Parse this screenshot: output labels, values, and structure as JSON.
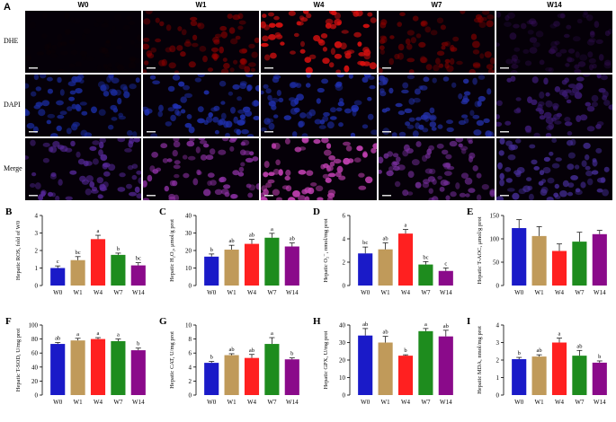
{
  "panelA": {
    "letter": "A",
    "columns": [
      "W0",
      "W1",
      "W4",
      "W7",
      "W14"
    ],
    "rows": [
      "DHE",
      "DAPI",
      "Merge"
    ]
  },
  "colors": {
    "W0": "#1a1ac8",
    "W1": "#c09a5a",
    "W4": "#ff2020",
    "W7": "#1e8c1e",
    "W14": "#8a0a8a"
  },
  "image_tints": {
    "DHE": [
      "#1a0000",
      "#a00000",
      "#d81010",
      "#8a0000",
      "#3a1060"
    ],
    "DAPI": [
      "#1a2a9a",
      "#2030b0",
      "#2030b0",
      "#2430a8",
      "#3a1a70"
    ],
    "Merge": [
      "#5a2aa0",
      "#8a30a0",
      "#c040b0",
      "#7a30a0",
      "#4a30a0"
    ]
  },
  "image_intensity": {
    "DHE": [
      0.15,
      0.6,
      0.95,
      0.65,
      0.45
    ],
    "DAPI": [
      0.9,
      0.9,
      0.85,
      0.85,
      0.9
    ],
    "Merge": [
      0.8,
      0.85,
      0.95,
      0.8,
      0.8
    ]
  },
  "chart_data": [
    {
      "letter": "B",
      "type": "bar",
      "ylabel": "Hepatic ROS, fold of W0",
      "categories": [
        "W0",
        "W1",
        "W4",
        "W7",
        "W14"
      ],
      "values": [
        1.0,
        1.45,
        2.65,
        1.75,
        1.15
      ],
      "errors": [
        0.12,
        0.2,
        0.22,
        0.1,
        0.15
      ],
      "sig": [
        "c",
        "bc",
        "a",
        "b",
        "bc"
      ],
      "ylim": [
        0,
        4
      ],
      "yticks": [
        "0",
        "1",
        "2",
        "3",
        "4"
      ]
    },
    {
      "letter": "C",
      "type": "bar",
      "ylabel": "Hepatic H₂O₂, μmol/g prot",
      "categories": [
        "W0",
        "W1",
        "W4",
        "W7",
        "W14"
      ],
      "values": [
        16.5,
        20.5,
        23.8,
        27.3,
        22.3
      ],
      "errors": [
        1.5,
        2.5,
        2.5,
        2.5,
        2.0
      ],
      "sig": [
        "b",
        "ab",
        "ab",
        "a",
        "ab"
      ],
      "ylim": [
        0,
        40
      ],
      "yticks": [
        "0",
        "10",
        "20",
        "30",
        "40"
      ]
    },
    {
      "letter": "D",
      "type": "bar",
      "ylabel": "Hepatic O₂⁻, nmol/mg prot",
      "categories": [
        "W0",
        "W1",
        "W4",
        "W7",
        "W14"
      ],
      "values": [
        2.75,
        3.1,
        4.45,
        1.8,
        1.25
      ],
      "errors": [
        0.55,
        0.55,
        0.35,
        0.25,
        0.25
      ],
      "sig": [
        "bc",
        "ab",
        "a",
        "bc",
        "c"
      ],
      "ylim": [
        0,
        6
      ],
      "yticks": [
        "0",
        "2",
        "4",
        "6"
      ]
    },
    {
      "letter": "E",
      "type": "bar",
      "ylabel": "Hepatic T-AOC, μmol/g prot",
      "categories": [
        "W0",
        "W1",
        "W4",
        "W7",
        "W14"
      ],
      "values": [
        123,
        106,
        74,
        94,
        110
      ],
      "errors": [
        18,
        20,
        15,
        20,
        8
      ],
      "sig": [
        "",
        "",
        "",
        "",
        ""
      ],
      "ylim": [
        0,
        150
      ],
      "yticks": [
        "0",
        "50",
        "100",
        "150"
      ]
    },
    {
      "letter": "F",
      "type": "bar",
      "ylabel": "Hepatic T-SOD, U/mg prot",
      "categories": [
        "W0",
        "W1",
        "W4",
        "W7",
        "W14"
      ],
      "values": [
        73,
        78,
        80,
        77,
        64
      ],
      "errors": [
        2,
        3,
        2,
        3,
        3
      ],
      "sig": [
        "ab",
        "a",
        "a",
        "a",
        "b"
      ],
      "ylim": [
        0,
        100
      ],
      "yticks": [
        "0",
        "20",
        "40",
        "60",
        "80",
        "100"
      ]
    },
    {
      "letter": "G",
      "type": "bar",
      "ylabel": "Hepatic CAT, U/mg prot",
      "categories": [
        "W0",
        "W1",
        "W4",
        "W7",
        "W14"
      ],
      "values": [
        4.6,
        5.7,
        5.3,
        7.3,
        5.1
      ],
      "errors": [
        0.2,
        0.2,
        0.5,
        0.9,
        0.2
      ],
      "sig": [
        "b",
        "ab",
        "ab",
        "a",
        "b"
      ],
      "ylim": [
        0,
        10
      ],
      "yticks": [
        "0",
        "2",
        "4",
        "6",
        "8",
        "10"
      ]
    },
    {
      "letter": "H",
      "type": "bar",
      "ylabel": "Hepatic GPX, U/mg prot",
      "categories": [
        "W0",
        "W1",
        "W4",
        "W7",
        "W14"
      ],
      "values": [
        34,
        30,
        22.5,
        36.5,
        33.5
      ],
      "errors": [
        4,
        3.5,
        0.5,
        1.5,
        3.5
      ],
      "sig": [
        "ab",
        "ab",
        "b",
        "a",
        "ab"
      ],
      "ylim": [
        0,
        40
      ],
      "yticks": [
        "0",
        "10",
        "20",
        "30",
        "40"
      ]
    },
    {
      "letter": "I",
      "type": "bar",
      "ylabel": "Hepatic MDA, nmol/mg prot",
      "categories": [
        "W0",
        "W1",
        "W4",
        "W7",
        "W14"
      ],
      "values": [
        2.05,
        2.2,
        3.0,
        2.25,
        1.85
      ],
      "errors": [
        0.1,
        0.1,
        0.25,
        0.3,
        0.1
      ],
      "sig": [
        "b",
        "ab",
        "a",
        "ab",
        "b"
      ],
      "ylim": [
        0,
        4
      ],
      "yticks": [
        "0",
        "1",
        "2",
        "3",
        "4"
      ]
    }
  ]
}
